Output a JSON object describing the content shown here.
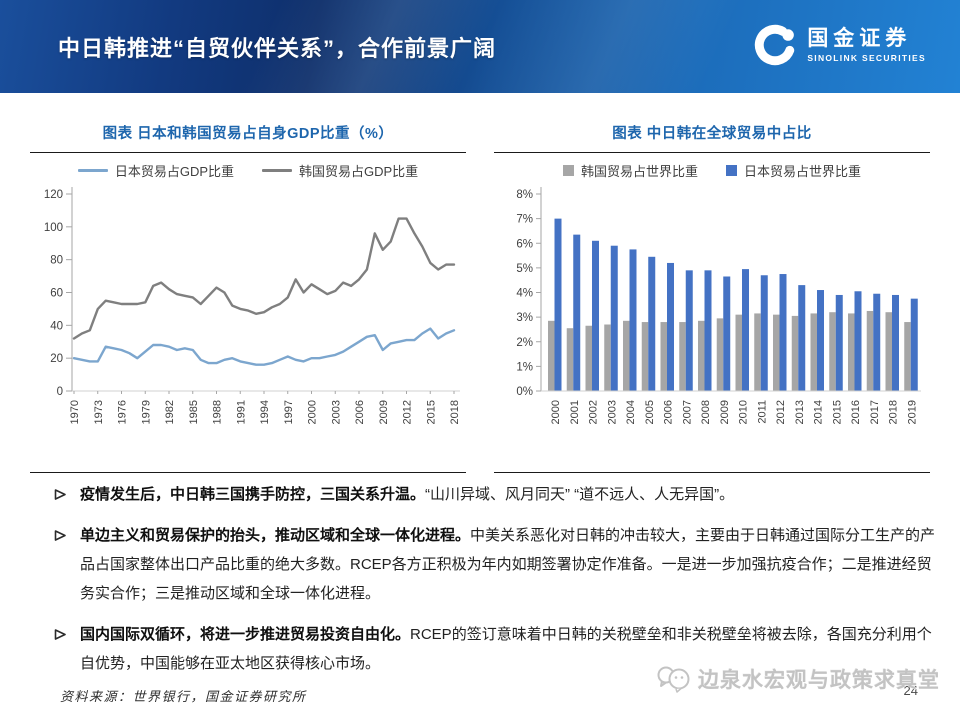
{
  "header": {
    "title": "中日韩推进“自贸伙伴关系”，合作前景广阔",
    "logo_cn": "国金证券",
    "logo_en": "SINOLINK SECURITIES"
  },
  "chart_data": [
    {
      "type": "line",
      "title": "图表 日本和韩国贸易占自身GDP比重（%）",
      "x": [
        1970,
        1971,
        1972,
        1973,
        1974,
        1975,
        1976,
        1977,
        1978,
        1979,
        1980,
        1981,
        1982,
        1983,
        1984,
        1985,
        1986,
        1987,
        1988,
        1989,
        1990,
        1991,
        1992,
        1993,
        1994,
        1995,
        1996,
        1997,
        1998,
        1999,
        2000,
        2001,
        2002,
        2003,
        2004,
        2005,
        2006,
        2007,
        2008,
        2009,
        2010,
        2011,
        2012,
        2013,
        2014,
        2015,
        2016,
        2017,
        2018
      ],
      "xtick_step_years": 3,
      "ylim": [
        0,
        120
      ],
      "yticks": [
        0,
        20,
        40,
        60,
        80,
        100,
        120
      ],
      "legend_position": "top",
      "grid": false,
      "series": [
        {
          "name": "日本贸易占GDP比重",
          "color": "#7ca6ce",
          "values": [
            20,
            19,
            18,
            18,
            27,
            26,
            25,
            23,
            20,
            24,
            28,
            28,
            27,
            25,
            26,
            25,
            19,
            17,
            17,
            19,
            20,
            18,
            17,
            16,
            16,
            17,
            19,
            21,
            19,
            18,
            20,
            20,
            21,
            22,
            24,
            27,
            30,
            33,
            34,
            25,
            29,
            30,
            31,
            31,
            35,
            38,
            32,
            35,
            37
          ]
        },
        {
          "name": "韩国贸易占GDP比重",
          "color": "#7f7f7f",
          "values": [
            32,
            35,
            37,
            50,
            55,
            54,
            53,
            53,
            53,
            54,
            64,
            66,
            62,
            59,
            58,
            57,
            53,
            58,
            63,
            60,
            52,
            50,
            49,
            47,
            48,
            51,
            53,
            57,
            68,
            60,
            65,
            62,
            59,
            61,
            66,
            64,
            68,
            74,
            96,
            86,
            91,
            105,
            105,
            96,
            88,
            78,
            74,
            77,
            77
          ]
        }
      ]
    },
    {
      "type": "bar",
      "title": "图表  中日韩在全球贸易中占比",
      "categories": [
        "2000",
        "2001",
        "2002",
        "2003",
        "2004",
        "2005",
        "2006",
        "2007",
        "2008",
        "2009",
        "2010",
        "2011",
        "2012",
        "2013",
        "2014",
        "2015",
        "2016",
        "2017",
        "2018",
        "2019"
      ],
      "ylim": [
        0,
        8
      ],
      "ytick_labels": [
        "0%",
        "1%",
        "2%",
        "3%",
        "4%",
        "5%",
        "6%",
        "7%",
        "8%"
      ],
      "legend_position": "top",
      "grid": false,
      "series": [
        {
          "name": "韩国贸易占世界比重",
          "color": "#a6a6a6",
          "values": [
            2.85,
            2.55,
            2.65,
            2.7,
            2.85,
            2.8,
            2.8,
            2.8,
            2.85,
            2.95,
            3.1,
            3.15,
            3.1,
            3.05,
            3.15,
            3.2,
            3.15,
            3.25,
            3.2,
            2.8
          ]
        },
        {
          "name": "日本贸易占世界比重",
          "color": "#4472c4",
          "values": [
            7.0,
            6.35,
            6.1,
            5.9,
            5.75,
            5.45,
            5.2,
            4.9,
            4.9,
            4.65,
            4.95,
            4.7,
            4.75,
            4.3,
            4.1,
            3.9,
            4.05,
            3.95,
            3.9,
            3.75
          ]
        }
      ]
    }
  ],
  "bullets": [
    {
      "bold": "疫情发生后，中日韩三国携手防控，三国关系升温。",
      "text": "“山川异域、风月同天” “道不远人、人无异国”。"
    },
    {
      "bold": "单边主义和贸易保护的抬头，推动区域和全球一体化进程。",
      "text": "中美关系恶化对日韩的冲击较大，主要由于日韩通过国际分工生产的产品占国家整体出口产品比重的绝大多数。RCEP各方正积极为年内如期签署协定作准备。一是进一步加强抗疫合作；二是推进经贸务实合作；三是推动区域和全球一体化进程。"
    },
    {
      "bold": "国内国际双循环，将进一步推进贸易投资自由化。",
      "text": "RCEP的签订意味着中日韩的关税壁垒和非关税壁垒将被去除，各国充分利用个自优势，中国能够在亚太地区获得核心市场。"
    }
  ],
  "footer": {
    "source": "资料来源：世界银行，国金证券研究所",
    "watermark": "边泉水宏观与政策求真堂",
    "page": "24"
  }
}
